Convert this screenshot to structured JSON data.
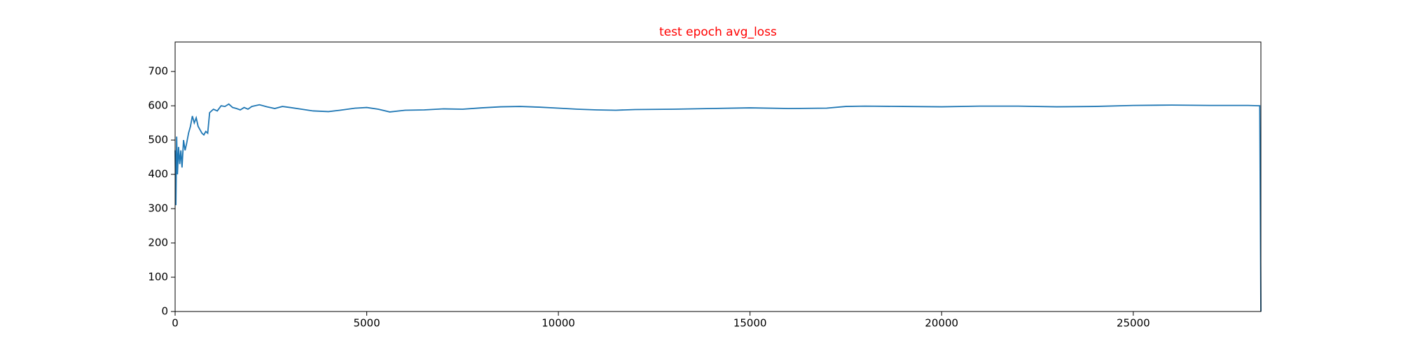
{
  "chart_data": {
    "type": "line",
    "title": "test epoch avg_loss",
    "x": [
      0,
      20,
      40,
      60,
      90,
      120,
      150,
      180,
      220,
      260,
      300,
      350,
      400,
      450,
      500,
      550,
      600,
      650,
      700,
      750,
      800,
      850,
      900,
      1000,
      1100,
      1200,
      1300,
      1400,
      1500,
      1600,
      1700,
      1800,
      1900,
      2000,
      2200,
      2400,
      2600,
      2800,
      3000,
      3300,
      3600,
      4000,
      4300,
      4700,
      5000,
      5300,
      5600,
      6000,
      6500,
      7000,
      7500,
      8000,
      8500,
      9000,
      9500,
      10000,
      10500,
      11000,
      11500,
      12000,
      13000,
      14000,
      15000,
      16000,
      17000,
      17500,
      18000,
      19000,
      20000,
      21000,
      22000,
      23000,
      24000,
      25000,
      26000,
      27000,
      28000,
      28300,
      28330
    ],
    "series": [
      {
        "color": "#1f77b4",
        "values": [
          470,
          310,
          510,
          400,
          480,
          430,
          470,
          420,
          500,
          470,
          490,
          520,
          540,
          570,
          550,
          565,
          540,
          530,
          520,
          515,
          525,
          520,
          580,
          590,
          585,
          600,
          598,
          605,
          595,
          592,
          588,
          595,
          590,
          598,
          603,
          597,
          592,
          598,
          595,
          590,
          585,
          583,
          587,
          593,
          595,
          590,
          582,
          587,
          588,
          591,
          590,
          594,
          597,
          598,
          596,
          593,
          590,
          588,
          587,
          589,
          590,
          592,
          594,
          592,
          593,
          598,
          599,
          598,
          597,
          599,
          599,
          597,
          598,
          601,
          602,
          601,
          601,
          600,
          0
        ]
      }
    ],
    "xlim": [
      0,
      28330
    ],
    "xticks": [
      0,
      5000,
      10000,
      15000,
      20000,
      25000
    ],
    "ylim": [
      0,
      786
    ],
    "yticks": [
      0,
      100,
      200,
      300,
      400,
      500,
      600,
      700
    ]
  }
}
